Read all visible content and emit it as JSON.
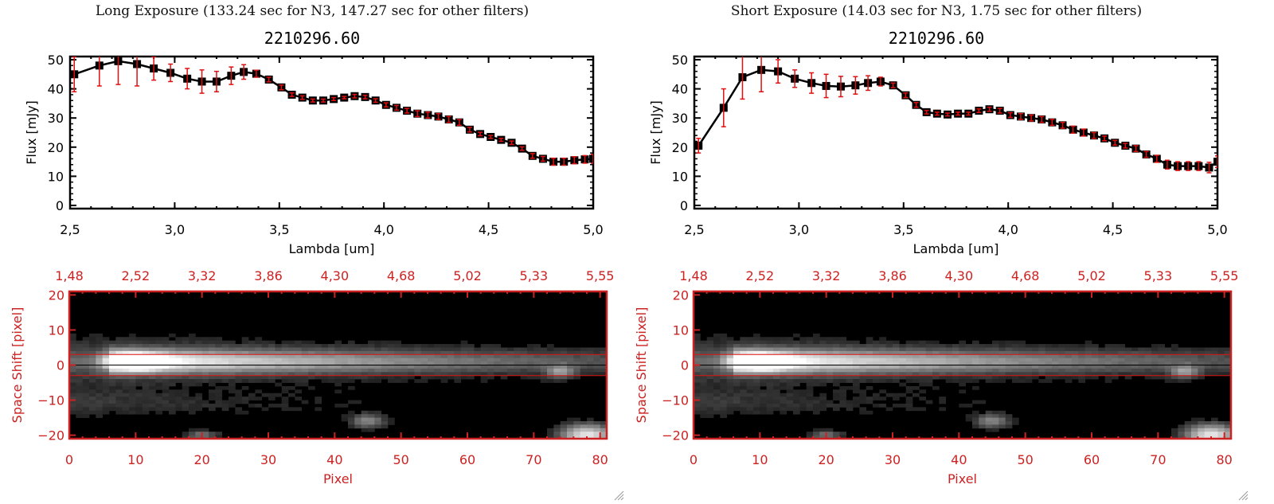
{
  "panels": [
    {
      "id": "long",
      "exposure_title": "Long Exposure (133.24 sec for N3, 147.27 sec for other filters)",
      "plot_title": "2210296.60"
    },
    {
      "id": "short",
      "exposure_title": "Short Exposure (14.03 sec for N3, 1.75 sec for other filters)",
      "plot_title": "2210296.60"
    }
  ],
  "colors": {
    "line": "#000000",
    "errorbar": "#e01010",
    "image_axis": "#cc2222",
    "extraction_lines": "#dd1111"
  },
  "chart_data": [
    {
      "type": "line",
      "panel": "long",
      "title": "2210296.60",
      "xlabel": "Lambda [um]",
      "ylabel": "Flux [mJy]",
      "xlim": [
        2.5,
        5.0
      ],
      "ylim": [
        0,
        50
      ],
      "xticks": [
        "2.5",
        "3.0",
        "3.5",
        "4.0",
        "4.5",
        "5.0"
      ],
      "yticks": [
        "0",
        "10",
        "20",
        "30",
        "40",
        "50"
      ],
      "x": [
        2.52,
        2.64,
        2.73,
        2.82,
        2.9,
        2.98,
        3.06,
        3.13,
        3.2,
        3.27,
        3.33,
        3.39,
        3.45,
        3.51,
        3.56,
        3.61,
        3.66,
        3.71,
        3.76,
        3.81,
        3.86,
        3.91,
        3.96,
        4.01,
        4.06,
        4.11,
        4.16,
        4.21,
        4.26,
        4.31,
        4.36,
        4.41,
        4.46,
        4.51,
        4.56,
        4.61,
        4.66,
        4.71,
        4.76,
        4.81,
        4.86,
        4.91,
        4.96,
        5.0
      ],
      "y": [
        45,
        48,
        49.5,
        48.5,
        47,
        45.5,
        43.5,
        42.5,
        42.5,
        44.5,
        45.8,
        45.2,
        43.2,
        40.5,
        38,
        37,
        36,
        36,
        36.5,
        37,
        37.5,
        37.2,
        36,
        34.5,
        33.5,
        32.5,
        31.5,
        31,
        30.5,
        29.5,
        28.5,
        26,
        24.5,
        23.5,
        22.5,
        21.5,
        19.5,
        17,
        16,
        15,
        15,
        15.5,
        15.8,
        16
      ],
      "yerr": [
        6,
        7,
        8,
        7.5,
        4,
        3,
        3.5,
        4,
        3.5,
        3,
        2.5,
        1.2,
        0.8,
        0.8,
        0.6,
        0.6,
        0.5,
        0.5,
        0.5,
        0.4,
        0.6,
        0.6,
        0.6,
        0.7,
        0.8,
        0.8,
        1,
        1,
        1,
        1,
        1,
        0.8,
        0.6,
        0.5,
        0.5,
        0.6,
        0.6,
        0.8,
        0.8,
        1.2,
        1.2,
        1.2,
        1.3,
        1.5
      ]
    },
    {
      "type": "line",
      "panel": "short",
      "title": "2210296.60",
      "xlabel": "Lambda [um]",
      "ylabel": "Flux [mJy]",
      "xlim": [
        2.5,
        5.0
      ],
      "ylim": [
        0,
        50
      ],
      "xticks": [
        "2.5",
        "3.0",
        "3.5",
        "4.0",
        "4.5",
        "5.0"
      ],
      "yticks": [
        "0",
        "10",
        "20",
        "30",
        "40",
        "50"
      ],
      "x": [
        2.52,
        2.64,
        2.73,
        2.82,
        2.9,
        2.98,
        3.06,
        3.13,
        3.2,
        3.27,
        3.33,
        3.39,
        3.45,
        3.51,
        3.56,
        3.61,
        3.66,
        3.71,
        3.76,
        3.81,
        3.86,
        3.91,
        3.96,
        4.01,
        4.06,
        4.11,
        4.16,
        4.21,
        4.26,
        4.31,
        4.36,
        4.41,
        4.46,
        4.51,
        4.56,
        4.61,
        4.66,
        4.71,
        4.76,
        4.81,
        4.86,
        4.91,
        4.96,
        5.0
      ],
      "y": [
        20.5,
        33.5,
        44,
        46.5,
        46,
        43.5,
        42,
        41,
        40.8,
        41.2,
        42,
        42.5,
        41.2,
        37.8,
        34.5,
        32,
        31.5,
        31.2,
        31.5,
        31.5,
        32.5,
        33,
        32.5,
        31,
        30.5,
        30,
        29.5,
        28.5,
        27.5,
        26,
        25,
        24,
        23,
        21.5,
        20.5,
        19.5,
        17.5,
        16,
        14,
        13.5,
        13.5,
        13.5,
        13,
        15
      ],
      "yerr": [
        2.5,
        6.5,
        7.5,
        7.5,
        4,
        3,
        3.5,
        4,
        3.5,
        3,
        2.5,
        1.5,
        0.8,
        0.8,
        0.8,
        0.6,
        0.5,
        0.5,
        0.5,
        0.5,
        0.6,
        0.7,
        0.8,
        0.8,
        1,
        1,
        1,
        1,
        1,
        1.2,
        1.2,
        1,
        0.8,
        0.8,
        0.8,
        1,
        1,
        1.2,
        1.5,
        1.5,
        1.5,
        1.5,
        1.8,
        2
      ]
    },
    {
      "type": "heatmap",
      "panel": "long",
      "xlabel": "Pixel",
      "ylabel": "Space Shift [pixel]",
      "xlim": [
        0,
        81
      ],
      "ylim": [
        -21,
        21
      ],
      "xticks": [
        "0",
        "10",
        "20",
        "30",
        "40",
        "50",
        "60",
        "70",
        "80"
      ],
      "yticks": [
        "-20",
        "-10",
        "0",
        "10",
        "20"
      ],
      "top_axis_ticks": [
        "1.48",
        "2.52",
        "3.32",
        "3.86",
        "4.30",
        "4.68",
        "5.02",
        "5.33",
        "5.55"
      ],
      "extraction_aperture": [
        -3,
        3
      ],
      "center_line": 0,
      "sources": [
        {
          "x": 10,
          "y": 1,
          "peak": 1.0,
          "sx": 4,
          "sy": 2.2
        },
        {
          "x": 45,
          "y": -16,
          "peak": 0.45,
          "sx": 2.5,
          "sy": 2
        },
        {
          "x": 20,
          "y": -20,
          "peak": 0.35,
          "sx": 2.5,
          "sy": 1.5
        },
        {
          "x": 74,
          "y": -2,
          "peak": 0.45,
          "sx": 2,
          "sy": 1.8
        },
        {
          "x": 78,
          "y": -20,
          "peak": 0.9,
          "sx": 4,
          "sy": 3
        }
      ]
    },
    {
      "type": "heatmap",
      "panel": "short",
      "xlabel": "Pixel",
      "ylabel": "Space Shift [pixel]",
      "xlim": [
        0,
        81
      ],
      "ylim": [
        -21,
        21
      ],
      "xticks": [
        "0",
        "10",
        "20",
        "30",
        "40",
        "50",
        "60",
        "70",
        "80"
      ],
      "yticks": [
        "-20",
        "-10",
        "0",
        "10",
        "20"
      ],
      "top_axis_ticks": [
        "1.48",
        "2.52",
        "3.32",
        "3.86",
        "4.30",
        "4.68",
        "5.02",
        "5.33",
        "5.55"
      ],
      "extraction_aperture": [
        -3,
        3
      ],
      "center_line": 0,
      "sources": [
        {
          "x": 10,
          "y": 1,
          "peak": 1.0,
          "sx": 4,
          "sy": 2.2
        },
        {
          "x": 45,
          "y": -16,
          "peak": 0.45,
          "sx": 2.5,
          "sy": 2
        },
        {
          "x": 20,
          "y": -20,
          "peak": 0.35,
          "sx": 2.5,
          "sy": 1.5
        },
        {
          "x": 74,
          "y": -2,
          "peak": 0.45,
          "sx": 2,
          "sy": 1.8
        },
        {
          "x": 78,
          "y": -20,
          "peak": 0.9,
          "sx": 4,
          "sy": 3
        }
      ]
    }
  ]
}
